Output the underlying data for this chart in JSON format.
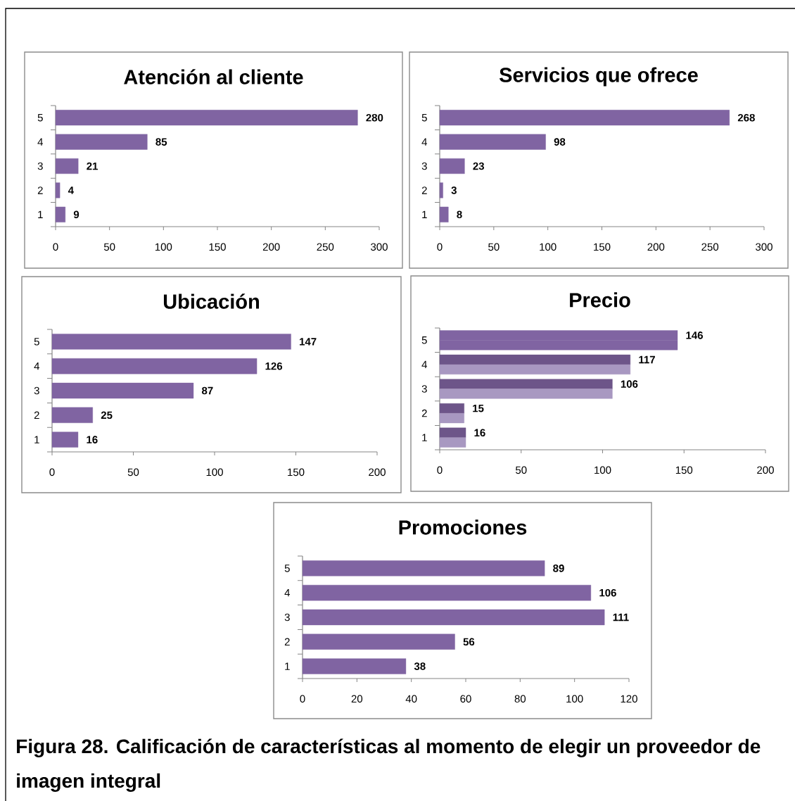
{
  "chart_data": [
    {
      "type": "bar",
      "orientation": "horizontal",
      "title": "Atención al cliente",
      "categories": [
        "5",
        "4",
        "3",
        "2",
        "1"
      ],
      "values": [
        280,
        85,
        21,
        4,
        9
      ],
      "color": "#8064a2",
      "xlim": [
        0,
        300
      ],
      "xticks": [
        0,
        50,
        100,
        150,
        200,
        250,
        300
      ],
      "data_labels": true
    },
    {
      "type": "bar",
      "orientation": "horizontal",
      "title": "Servicios que ofrece",
      "categories": [
        "5",
        "4",
        "3",
        "2",
        "1"
      ],
      "values": [
        268,
        98,
        23,
        3,
        8
      ],
      "color": "#8064a2",
      "xlim": [
        0,
        300
      ],
      "xticks": [
        0,
        50,
        100,
        150,
        200,
        250,
        300
      ],
      "data_labels": true
    },
    {
      "type": "bar",
      "orientation": "horizontal",
      "title": "Ubicación",
      "categories": [
        "5",
        "4",
        "3",
        "2",
        "1"
      ],
      "values": [
        147,
        126,
        87,
        25,
        16
      ],
      "color": "#8064a2",
      "xlim": [
        0,
        200
      ],
      "xticks": [
        0,
        50,
        100,
        150,
        200
      ],
      "data_labels": true
    },
    {
      "type": "bar",
      "orientation": "horizontal",
      "title": "Precio",
      "categories": [
        "5",
        "4",
        "3",
        "2",
        "1"
      ],
      "series": [
        {
          "values": [
            146,
            117,
            106,
            15,
            16
          ],
          "colors": [
            "#8064a2",
            "#6d5589",
            "#6d5589",
            "#6d5589",
            "#6d5589"
          ],
          "value_labels": [
            "146",
            "117",
            "106",
            "15",
            "16"
          ]
        },
        {
          "values": [
            146,
            117,
            106,
            15,
            16
          ],
          "colors": [
            "#8064a2",
            "#a898c1",
            "#a898c1",
            "#a898c1",
            "#a898c1"
          ]
        }
      ],
      "xlim": [
        0,
        200
      ],
      "xticks": [
        0,
        50,
        100,
        150,
        200
      ]
    },
    {
      "type": "bar",
      "orientation": "horizontal",
      "title": "Promociones",
      "categories": [
        "5",
        "4",
        "3",
        "2",
        "1"
      ],
      "values": [
        89,
        106,
        111,
        56,
        38
      ],
      "color": "#8064a2",
      "xlim": [
        0,
        120
      ],
      "xticks": [
        0,
        20,
        40,
        60,
        80,
        100,
        120
      ],
      "data_labels": true,
      "annotations": [
        "Figura 28. Calificación de características al momento de elegir un proveedor de imagen integral"
      ]
    }
  ]
}
